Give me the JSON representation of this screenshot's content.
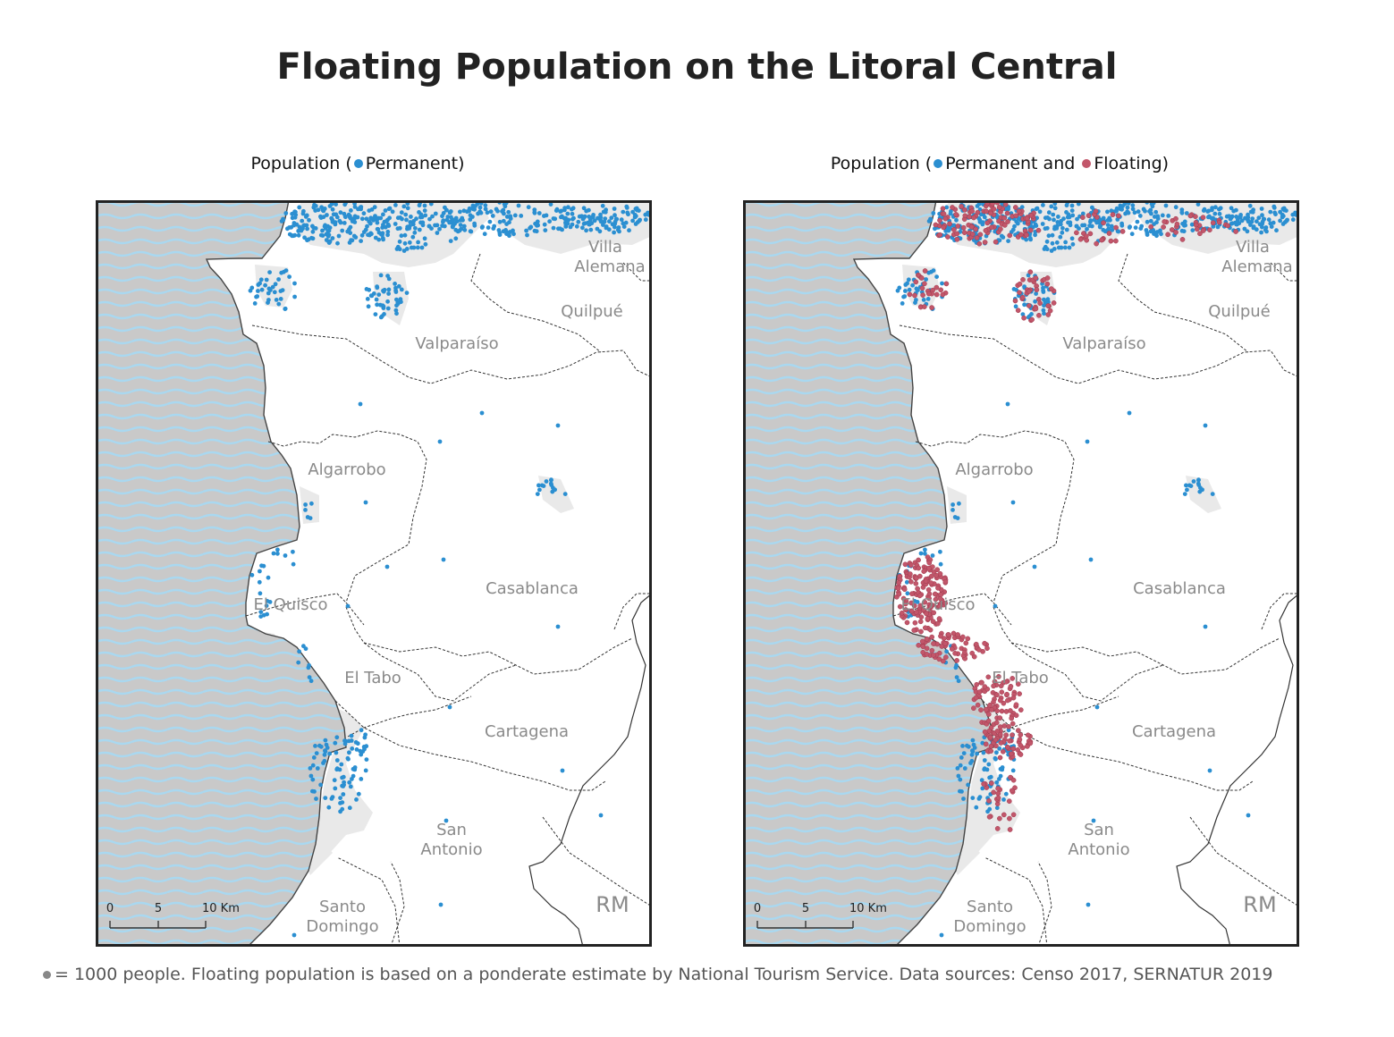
{
  "title": "Floating Population on the Litoral Central",
  "colors": {
    "permanent": "#2b8fd1",
    "floating": "#c2566a",
    "sea": "#c9c9c9",
    "waves": "#9fd3ef",
    "urban": "#e9e9e9",
    "label": "#8a8a8a"
  },
  "maps": [
    {
      "id": "left",
      "legend": {
        "prefix": "Population (",
        "item1": "Permanent",
        "middle": "",
        "item2": "",
        "suffix": ")"
      },
      "show_floating": false
    },
    {
      "id": "right",
      "legend": {
        "prefix": "Population (",
        "item1": "Permanent and ",
        "middle": "",
        "item2": "Floating",
        "suffix": ")"
      },
      "show_floating": true
    }
  ],
  "places": {
    "villa1": "Villa",
    "villa2": "Alemana",
    "quilpue": "Quilpué",
    "valparaiso": "Valparaíso",
    "algarrobo": "Algarrobo",
    "casablanca": "Casablanca",
    "elquisco": "El Quisco",
    "eltabo": "El Tabo",
    "cartagena": "Cartagena",
    "sanantonio1": "San",
    "sanantonio2": "Antonio",
    "santodomingo1": "Santo",
    "santodomingo2": "Domingo",
    "rm": "RM"
  },
  "scale": {
    "t0": "0",
    "t5": "5",
    "t10": "10 Km"
  },
  "footnote": "= 1000 people. Floating population is based on a ponderate estimate by National Tourism Service. Data sources: Censo 2017, SERNATUR 2019"
}
